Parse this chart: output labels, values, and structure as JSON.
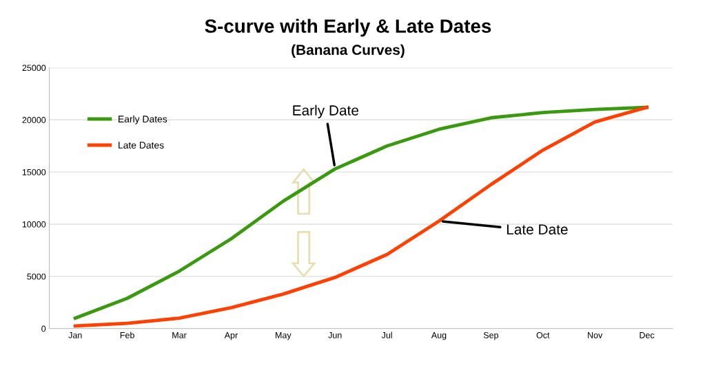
{
  "chart_data": {
    "type": "line",
    "title": "S-curve with Early & Late Dates",
    "subtitle": "(Banana Curves)",
    "categories": [
      "Jan",
      "Feb",
      "Mar",
      "Apr",
      "May",
      "Jun",
      "Jul",
      "Aug",
      "Sep",
      "Oct",
      "Nov",
      "Dec"
    ],
    "series": [
      {
        "name": "Early Dates",
        "color": "#3a9a0f",
        "values": [
          1000,
          2900,
          5500,
          8600,
          12200,
          15300,
          17500,
          19100,
          20200,
          20700,
          21000,
          21200
        ]
      },
      {
        "name": "Late Dates",
        "color": "#ff4000",
        "values": [
          250,
          500,
          1000,
          2000,
          3300,
          4900,
          7100,
          10300,
          13800,
          17100,
          19800,
          21200
        ]
      }
    ],
    "ylim": [
      0,
      25000
    ],
    "yticks": [
      0,
      5000,
      10000,
      15000,
      20000,
      25000
    ],
    "grid": "y",
    "legend": "top left",
    "marker": "none",
    "line_style": "solid",
    "annotations": [
      {
        "text": "Early Date",
        "x": "Jun",
        "y": 15300
      },
      {
        "text": "Late Date",
        "x": "Aug",
        "y": 10300
      }
    ]
  }
}
